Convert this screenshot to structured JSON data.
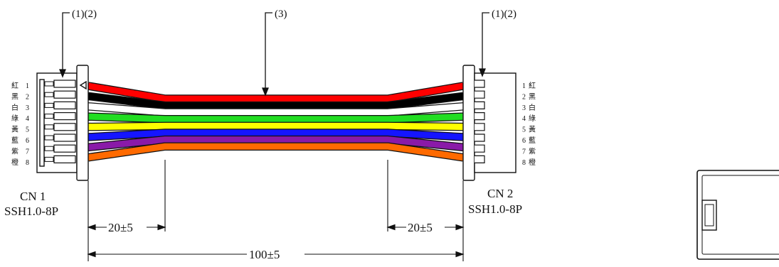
{
  "callouts": {
    "left": "(1)(2)",
    "center": "(3)",
    "right": "(1)(2)"
  },
  "connectors": {
    "left": {
      "name": "CN 1",
      "part": "SSH1.0-8P"
    },
    "right": {
      "name": "CN 2",
      "part": "SSH1.0-8P"
    }
  },
  "pins": [
    {
      "num": "1",
      "color_label": "紅",
      "color": "#ff0000"
    },
    {
      "num": "2",
      "color_label": "黑",
      "color": "#000000"
    },
    {
      "num": "3",
      "color_label": "白",
      "color": "#ffffff"
    },
    {
      "num": "4",
      "color_label": "綠",
      "color": "#22dd22"
    },
    {
      "num": "5",
      "color_label": "黃",
      "color": "#ffff00"
    },
    {
      "num": "6",
      "color_label": "藍",
      "color": "#1515ff"
    },
    {
      "num": "7",
      "color_label": "紫",
      "color": "#8a1aa8"
    },
    {
      "num": "8",
      "color_label": "橙",
      "color": "#ff6a00"
    }
  ],
  "dimensions": {
    "left_strip": "20±5",
    "right_strip": "20±5",
    "total_length": "100±5"
  }
}
